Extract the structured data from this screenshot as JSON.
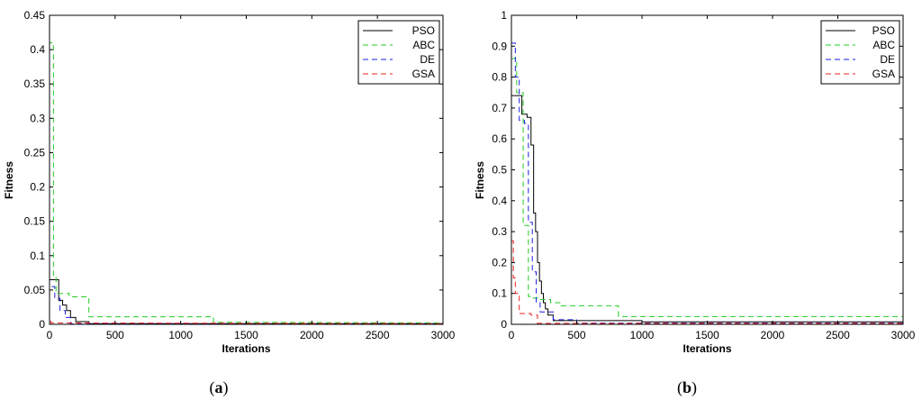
{
  "chart_data": [
    {
      "type": "line",
      "panel": "a",
      "caption_open": "(",
      "caption_letter": "a",
      "caption_close": ")",
      "xlabel": "Iterations",
      "ylabel": "Fitness",
      "xlim": [
        0,
        3000
      ],
      "ylim": [
        0,
        0.45
      ],
      "xticks": [
        0,
        500,
        1000,
        1500,
        2000,
        2500,
        3000
      ],
      "yticks": [
        0,
        0.05,
        0.1,
        0.15,
        0.2,
        0.25,
        0.3,
        0.35,
        0.4,
        0.45
      ],
      "ytick_labels": [
        "0",
        "0.05",
        "0.1",
        "0.15",
        "0.2",
        "0.25",
        "0.3",
        "0.35",
        "0.4",
        "0.45"
      ],
      "legend_position": "top-right",
      "series": [
        {
          "name": "PSO",
          "color": "#000000",
          "dash": "solid",
          "x": [
            0,
            0,
            70,
            70,
            100,
            100,
            130,
            130,
            160,
            160,
            200,
            200,
            300,
            300,
            3000
          ],
          "y": [
            0.06,
            0.065,
            0.065,
            0.035,
            0.035,
            0.028,
            0.028,
            0.02,
            0.02,
            0.01,
            0.01,
            0.004,
            0.004,
            0.001,
            0.001
          ]
        },
        {
          "name": "ABC",
          "color": "#22cc22",
          "dash": "dashed",
          "x": [
            0,
            0,
            30,
            30,
            50,
            50,
            150,
            150,
            300,
            300,
            1250,
            1250,
            3000
          ],
          "y": [
            0.38,
            0.41,
            0.41,
            0.07,
            0.07,
            0.045,
            0.045,
            0.04,
            0.04,
            0.011,
            0.011,
            0.003,
            0.002
          ]
        },
        {
          "name": "DE",
          "color": "#1e1ee6",
          "dash": "dashed",
          "x": [
            0,
            0,
            40,
            40,
            80,
            80,
            120,
            120,
            160,
            160,
            3000
          ],
          "y": [
            0.045,
            0.055,
            0.055,
            0.038,
            0.038,
            0.02,
            0.02,
            0.01,
            0.01,
            0.0005,
            0.0005
          ]
        },
        {
          "name": "GSA",
          "color": "#ee2222",
          "dash": "dashed",
          "x": [
            0,
            0,
            10,
            10,
            3000
          ],
          "y": [
            0.2,
            0.005,
            0.005,
            0.002,
            0.001
          ]
        }
      ]
    },
    {
      "type": "line",
      "panel": "b",
      "caption_open": "(",
      "caption_letter": "b",
      "caption_close": ")",
      "xlabel": "Iterations",
      "ylabel": "Fitness",
      "xlim": [
        0,
        3000
      ],
      "ylim": [
        0,
        1
      ],
      "xticks": [
        0,
        500,
        1000,
        1500,
        2000,
        2500,
        3000
      ],
      "yticks": [
        0,
        0.1,
        0.2,
        0.3,
        0.4,
        0.5,
        0.6,
        0.7,
        0.8,
        0.9,
        1
      ],
      "ytick_labels": [
        "0",
        "0.1",
        "0.2",
        "0.3",
        "0.4",
        "0.5",
        "0.6",
        "0.7",
        "0.8",
        "0.9",
        "1"
      ],
      "legend_position": "top-right",
      "series": [
        {
          "name": "PSO",
          "color": "#000000",
          "dash": "solid",
          "x": [
            0,
            0,
            80,
            80,
            120,
            120,
            150,
            150,
            170,
            170,
            185,
            185,
            200,
            200,
            215,
            215,
            230,
            230,
            245,
            245,
            260,
            260,
            280,
            280,
            320,
            320,
            1000,
            1000,
            3000
          ],
          "y": [
            0.72,
            0.74,
            0.74,
            0.68,
            0.68,
            0.67,
            0.67,
            0.58,
            0.58,
            0.36,
            0.36,
            0.3,
            0.3,
            0.2,
            0.2,
            0.14,
            0.14,
            0.1,
            0.1,
            0.07,
            0.07,
            0.05,
            0.05,
            0.03,
            0.03,
            0.012,
            0.012,
            0.008,
            0.008
          ]
        },
        {
          "name": "ABC",
          "color": "#22cc22",
          "dash": "dashed",
          "x": [
            0,
            0,
            40,
            40,
            90,
            90,
            130,
            130,
            160,
            160,
            200,
            200,
            300,
            300,
            380,
            380,
            820,
            820,
            3000
          ],
          "y": [
            0.8,
            0.86,
            0.86,
            0.75,
            0.75,
            0.32,
            0.32,
            0.09,
            0.09,
            0.085,
            0.085,
            0.08,
            0.08,
            0.07,
            0.07,
            0.06,
            0.06,
            0.025,
            0.025
          ]
        },
        {
          "name": "DE",
          "color": "#1e1ee6",
          "dash": "dashed",
          "x": [
            0,
            0,
            30,
            30,
            60,
            60,
            100,
            100,
            130,
            130,
            160,
            160,
            190,
            190,
            220,
            220,
            320,
            320,
            500,
            500,
            3000
          ],
          "y": [
            0.85,
            0.91,
            0.91,
            0.8,
            0.8,
            0.66,
            0.66,
            0.65,
            0.65,
            0.33,
            0.33,
            0.17,
            0.17,
            0.07,
            0.07,
            0.04,
            0.04,
            0.015,
            0.015,
            0.004,
            0.004
          ]
        },
        {
          "name": "GSA",
          "color": "#ee2222",
          "dash": "dashed",
          "x": [
            0,
            0,
            15,
            15,
            30,
            30,
            60,
            60,
            150,
            150,
            200,
            200,
            3000
          ],
          "y": [
            1,
            0.27,
            0.27,
            0.15,
            0.15,
            0.1,
            0.1,
            0.035,
            0.035,
            0.03,
            0.03,
            0.003,
            0.003
          ]
        }
      ]
    }
  ]
}
